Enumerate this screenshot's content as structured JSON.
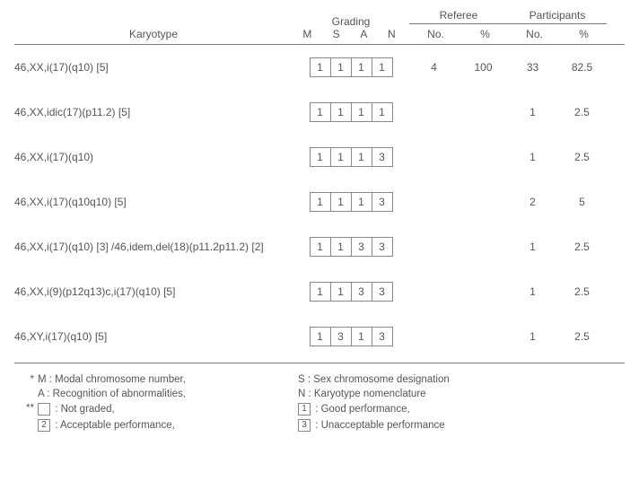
{
  "header": {
    "karyotype": "Karyotype",
    "grading": "Grading",
    "grading_letters": "M  S  A  N",
    "referee": "Referee",
    "participants": "Participants",
    "no": "No.",
    "pct": "%"
  },
  "rows": [
    {
      "k": "46,XX,i(17)(q10) [5]",
      "m": "1",
      "s": "1",
      "a": "1",
      "n": "1",
      "rn": "4",
      "rp": "100",
      "pn": "33",
      "pp": "82.5"
    },
    {
      "k": "46,XX,idic(17)(p11.2) [5]",
      "m": "1",
      "s": "1",
      "a": "1",
      "n": "1",
      "rn": "",
      "rp": "",
      "pn": "1",
      "pp": "2.5"
    },
    {
      "k": "46,XX,i(17)(q10)",
      "m": "1",
      "s": "1",
      "a": "1",
      "n": "3",
      "rn": "",
      "rp": "",
      "pn": "1",
      "pp": "2.5"
    },
    {
      "k": "46,XX,i(17)(q10q10) [5]",
      "m": "1",
      "s": "1",
      "a": "1",
      "n": "3",
      "rn": "",
      "rp": "",
      "pn": "2",
      "pp": "5"
    },
    {
      "k": "46,XX,i(17)(q10) [3] /46,idem,del(18)(p11.2p11.2) [2]",
      "m": "1",
      "s": "1",
      "a": "3",
      "n": "3",
      "rn": "",
      "rp": "",
      "pn": "1",
      "pp": "2.5"
    },
    {
      "k": "46,XX,i(9)(p12q13)c,i(17)(q10) [5]",
      "m": "1",
      "s": "1",
      "a": "3",
      "n": "3",
      "rn": "",
      "rp": "",
      "pn": "1",
      "pp": "2.5"
    },
    {
      "k": "46,XY,i(17)(q10) [5]",
      "m": "1",
      "s": "3",
      "a": "1",
      "n": "3",
      "rn": "",
      "rp": "",
      "pn": "1",
      "pp": "2.5"
    }
  ],
  "footer": {
    "l1a": "M : Modal chromosome number,",
    "l1b": "S : Sex chromosome designation",
    "l2a": "A : Recognition of abnormalities,",
    "l2b": "N : Karyotype nomenclature",
    "l3a": " : Not graded,",
    "l3b": " : Good performance,",
    "l4a": " : Acceptable performance,",
    "l4b": " : Unacceptable performance",
    "k1": "1",
    "k2": "2",
    "k3": "3"
  }
}
